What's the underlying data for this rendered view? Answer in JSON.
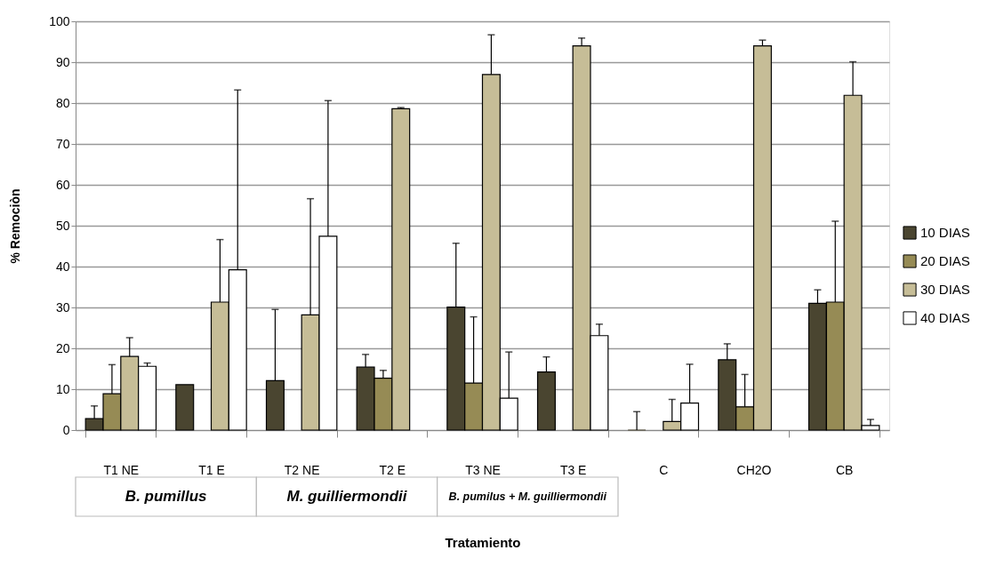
{
  "chart_data": {
    "type": "bar",
    "xlabel": "Tratamiento",
    "ylabel": "% Remociòn",
    "categories": [
      "T1 NE",
      "T1  E",
      "T2 NE",
      "T2 E",
      "T3 NE",
      "T3 E",
      "C",
      "CH2O",
      "CB"
    ],
    "series": [
      {
        "name": "10 DIAS",
        "color": "#4a4530",
        "values": [
          2.8,
          11.1,
          12.1,
          15.4,
          30.1,
          14.2,
          0,
          17.2,
          31.0
        ],
        "errors": [
          [
            2.8,
            5.9
          ],
          null,
          [
            12.1,
            29.5
          ],
          [
            15.4,
            18.5
          ],
          [
            30.1,
            45.7
          ],
          [
            14.2,
            17.9
          ],
          [
            0,
            4.5
          ],
          [
            17.2,
            21.1
          ],
          [
            31.0,
            34.3
          ]
        ]
      },
      {
        "name": "20 DIAS",
        "color": "#968b55",
        "values": [
          8.9,
          null,
          null,
          12.7,
          11.5,
          null,
          null,
          5.7,
          31.3
        ],
        "errors": [
          [
            8.9,
            16.0
          ],
          null,
          null,
          [
            12.7,
            14.6
          ],
          [
            11.5,
            27.7
          ],
          null,
          null,
          [
            5.7,
            13.6
          ],
          [
            31.3,
            51.1
          ]
        ]
      },
      {
        "name": "30 DIAS",
        "color": "#c6bd97",
        "values": [
          18.0,
          31.3,
          28.2,
          78.6,
          87.0,
          94.0,
          2.1,
          94.0,
          81.9
        ],
        "errors": [
          [
            18.0,
            22.6
          ],
          [
            31.3,
            46.6
          ],
          [
            28.2,
            56.6
          ],
          [
            78.6,
            78.9
          ],
          [
            87.0,
            96.7
          ],
          [
            94.0,
            95.9
          ],
          [
            2.1,
            7.5
          ],
          [
            94.0,
            95.4
          ],
          [
            81.9,
            90.1
          ]
        ]
      },
      {
        "name": "40 DIAS",
        "color": "#ffffff",
        "values": [
          15.6,
          39.2,
          47.4,
          null,
          7.8,
          23.1,
          6.6,
          null,
          1.1
        ],
        "errors": [
          [
            15.6,
            16.4
          ],
          [
            39.2,
            83.2
          ],
          [
            47.4,
            80.6
          ],
          null,
          [
            7.8,
            19.1
          ],
          [
            23.1,
            25.9
          ],
          [
            6.6,
            16.1
          ],
          null,
          [
            1.1,
            2.6
          ]
        ]
      }
    ],
    "ylim": [
      0,
      100
    ],
    "yticks": [
      0,
      10,
      20,
      30,
      40,
      50,
      60,
      70,
      80,
      90,
      100
    ],
    "grid": "y",
    "legend": "right",
    "annotations": [
      "B. pumillus",
      "M. guilliermondii",
      "B. pumilus + M. guilliermondii"
    ]
  }
}
